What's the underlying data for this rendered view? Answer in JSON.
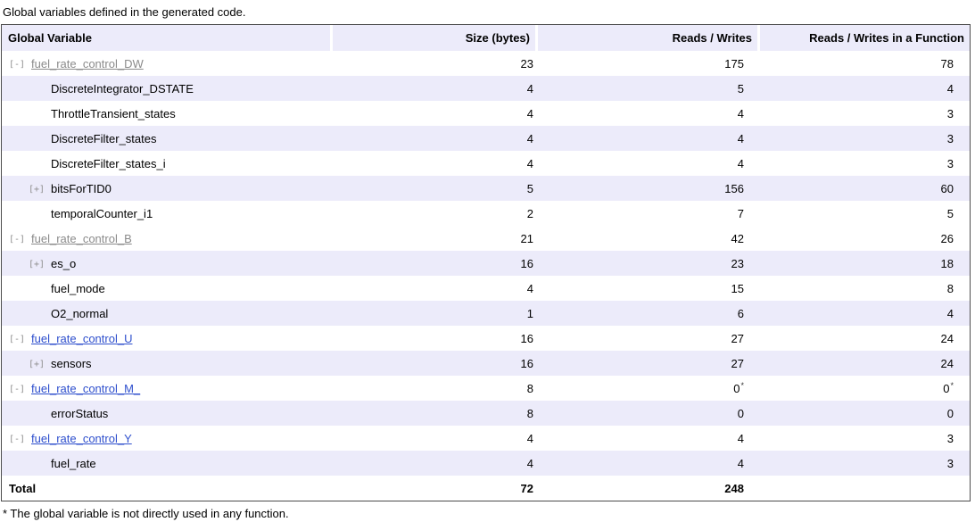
{
  "title": "Global variables defined in the generated code.",
  "footnote": "* The global variable is not directly used in any function.",
  "colors": {
    "row_stripe": "#ECEBFA",
    "table_border": "#4C4C4C",
    "link_visited": "#8B8B8B",
    "link_unvisited": "#2E4FCD"
  },
  "table": {
    "columns": [
      "Global Variable",
      "Size (bytes)",
      "Reads / Writes",
      "Reads / Writes in a Function"
    ],
    "rows": [
      {
        "name": "fuel_rate_control_DW",
        "marker": "[-]",
        "level": 0,
        "link": "visited",
        "size": "23",
        "reads_writes": "175",
        "reads_writes_fn": "78"
      },
      {
        "name": "DiscreteIntegrator_DSTATE",
        "marker": "",
        "level": 1,
        "link": "",
        "size": "4",
        "reads_writes": "5",
        "reads_writes_fn": "4"
      },
      {
        "name": "ThrottleTransient_states",
        "marker": "",
        "level": 1,
        "link": "",
        "size": "4",
        "reads_writes": "4",
        "reads_writes_fn": "3"
      },
      {
        "name": "DiscreteFilter_states",
        "marker": "",
        "level": 1,
        "link": "",
        "size": "4",
        "reads_writes": "4",
        "reads_writes_fn": "3"
      },
      {
        "name": "DiscreteFilter_states_i",
        "marker": "",
        "level": 1,
        "link": "",
        "size": "4",
        "reads_writes": "4",
        "reads_writes_fn": "3"
      },
      {
        "name": "bitsForTID0",
        "marker": "[+]",
        "level": 1,
        "link": "",
        "size": "5",
        "reads_writes": "156",
        "reads_writes_fn": "60"
      },
      {
        "name": "temporalCounter_i1",
        "marker": "",
        "level": 1,
        "link": "",
        "size": "2",
        "reads_writes": "7",
        "reads_writes_fn": "5"
      },
      {
        "name": "fuel_rate_control_B",
        "marker": "[-]",
        "level": 0,
        "link": "visited",
        "size": "21",
        "reads_writes": "42",
        "reads_writes_fn": "26"
      },
      {
        "name": "es_o",
        "marker": "[+]",
        "level": 1,
        "link": "",
        "size": "16",
        "reads_writes": "23",
        "reads_writes_fn": "18"
      },
      {
        "name": "fuel_mode",
        "marker": "",
        "level": 1,
        "link": "",
        "size": "4",
        "reads_writes": "15",
        "reads_writes_fn": "8"
      },
      {
        "name": "O2_normal",
        "marker": "",
        "level": 1,
        "link": "",
        "size": "1",
        "reads_writes": "6",
        "reads_writes_fn": "4"
      },
      {
        "name": "fuel_rate_control_U",
        "marker": "[-]",
        "level": 0,
        "link": "new",
        "size": "16",
        "reads_writes": "27",
        "reads_writes_fn": "24"
      },
      {
        "name": "sensors",
        "marker": "[+]",
        "level": 1,
        "link": "",
        "size": "16",
        "reads_writes": "27",
        "reads_writes_fn": "24"
      },
      {
        "name": "fuel_rate_control_M_",
        "marker": "[-]",
        "level": 0,
        "link": "new",
        "size": "8",
        "reads_writes": "0*",
        "reads_writes_fn": "0*"
      },
      {
        "name": "errorStatus",
        "marker": "",
        "level": 1,
        "link": "",
        "size": "8",
        "reads_writes": "0",
        "reads_writes_fn": "0"
      },
      {
        "name": "fuel_rate_control_Y",
        "marker": "[-]",
        "level": 0,
        "link": "new",
        "size": "4",
        "reads_writes": "4",
        "reads_writes_fn": "3"
      },
      {
        "name": "fuel_rate",
        "marker": "",
        "level": 1,
        "link": "",
        "size": "4",
        "reads_writes": "4",
        "reads_writes_fn": "3"
      }
    ],
    "total": {
      "label": "Total",
      "size": "72",
      "reads_writes": "248",
      "reads_writes_fn": ""
    }
  }
}
